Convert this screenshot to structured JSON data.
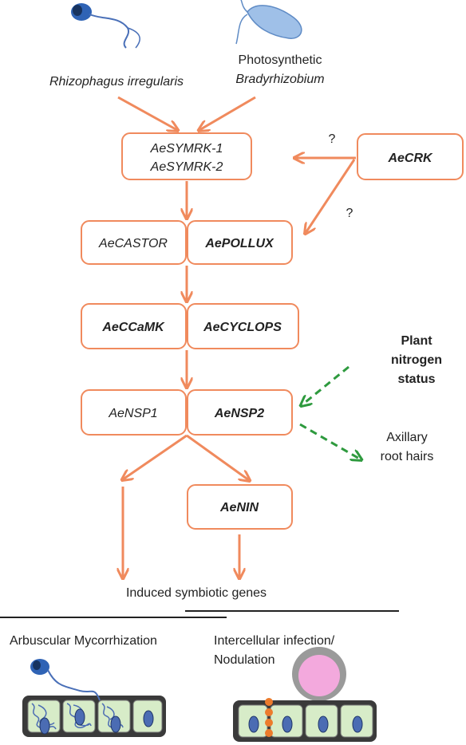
{
  "organisms": {
    "fungus": "Rhizophagus irregularis",
    "bacterium_line1": "Photosynthetic",
    "bacterium_line2": "Bradyrhizobium"
  },
  "boxes": {
    "symrk_line1": "AeSYMRK-1",
    "symrk_line2": "AeSYMRK-2",
    "crk": "AeCRK",
    "castor": "AeCASTOR",
    "pollux": "AePOLLUX",
    "ccamk": "AeCCaMK",
    "cyclops": "AeCYCLOPS",
    "nsp1": "AeNSP1",
    "nsp2": "AeNSP2",
    "nin": "AeNIN"
  },
  "question_marks": [
    "?",
    "?"
  ],
  "nitrogen": {
    "line1": "Plant",
    "line2": "nitrogen",
    "line3": "status"
  },
  "axillary": {
    "line1": "Axillary",
    "line2": "root hairs"
  },
  "induced_genes": "Induced symbiotic genes",
  "bottom": {
    "left_title": "Arbuscular Mycorrhization",
    "right_title_line1": "Intercellular infection/",
    "right_title_line2": "Nodulation"
  },
  "colors": {
    "arrow": "#f08a5d",
    "dashed_arrow": "#2e9a3e",
    "box_border": "#f08a5d",
    "cell_fill": "#d7ecc8",
    "nucleus": "#4b6cb3",
    "nodule": "#f3a9dd"
  }
}
